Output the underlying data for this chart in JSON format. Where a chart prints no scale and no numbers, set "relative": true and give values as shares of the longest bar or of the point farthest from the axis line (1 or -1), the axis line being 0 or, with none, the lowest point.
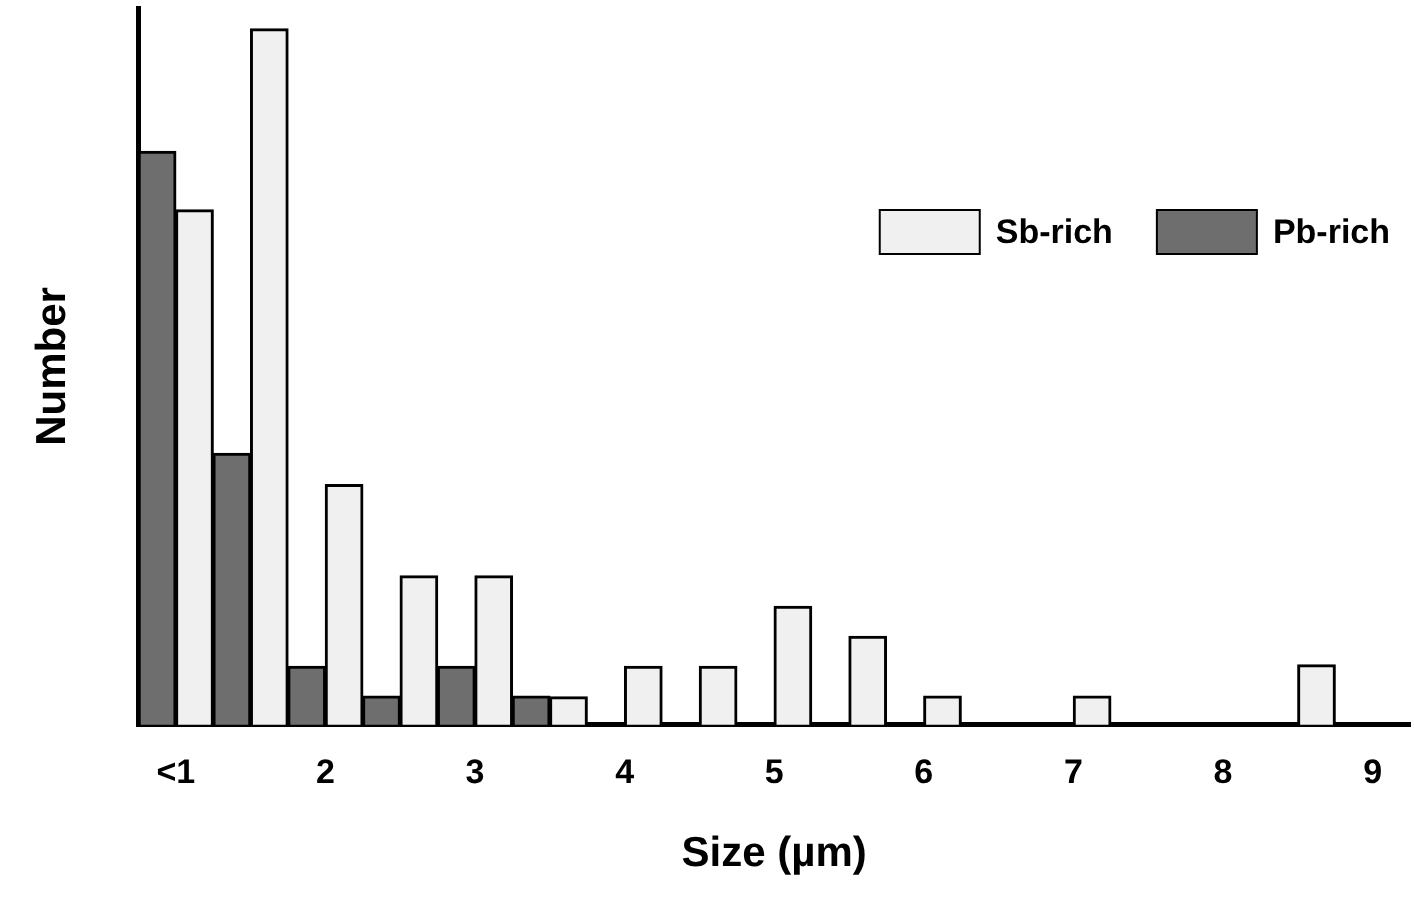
{
  "chart_data": {
    "type": "bar",
    "relative": true,
    "xlabel": "Size (µm)",
    "ylabel": "Number",
    "legend": "top right",
    "grid": false,
    "categories": [
      "<1",
      null,
      "2",
      null,
      "3",
      null,
      "4",
      null,
      "5",
      null,
      "6",
      null,
      "7",
      null,
      "8",
      null,
      "9"
    ],
    "series": [
      {
        "name": "Pb-rich",
        "color": "#6e6e6e",
        "values": [
          0.824,
          0.39,
          0.084,
          0.041,
          0.084,
          0.041,
          0,
          0,
          0,
          0,
          0,
          0,
          0,
          0,
          0,
          0,
          0
        ]
      },
      {
        "name": "Sb-rich",
        "color": "#f0f0f0",
        "values": [
          0.74,
          1,
          0.345,
          0.214,
          0.214,
          0.04,
          0.084,
          0.084,
          0.17,
          0.127,
          0.041,
          0,
          0.041,
          0,
          0,
          0.086,
          0
        ]
      }
    ]
  }
}
